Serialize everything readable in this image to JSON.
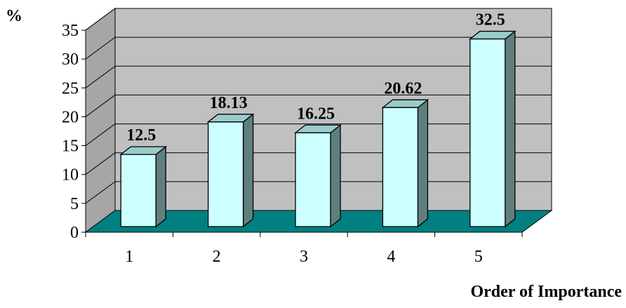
{
  "chart_data": {
    "type": "bar",
    "style": "3d-column",
    "categories": [
      "1",
      "2",
      "3",
      "4",
      "5"
    ],
    "values": [
      12.5,
      18.13,
      16.25,
      20.62,
      32.5
    ],
    "value_labels": [
      "12.5",
      "18.13",
      "16.25",
      "20.62",
      "32.5"
    ],
    "title": "",
    "xlabel": "Order of Importance",
    "ylabel": "%",
    "ylim": [
      0,
      35
    ],
    "yticks": [
      "0",
      "5",
      "10",
      "15",
      "20",
      "25",
      "30",
      "35"
    ],
    "grid": true,
    "legend": "none",
    "colors": {
      "bar_front": "#ccffff",
      "bar_top": "#99cccc",
      "bar_side": "#5f7f7f",
      "floor": "#008080",
      "back_wall": "#c0c0c0",
      "side_wall": "#a6a6a6",
      "gridline": "#000000"
    }
  }
}
